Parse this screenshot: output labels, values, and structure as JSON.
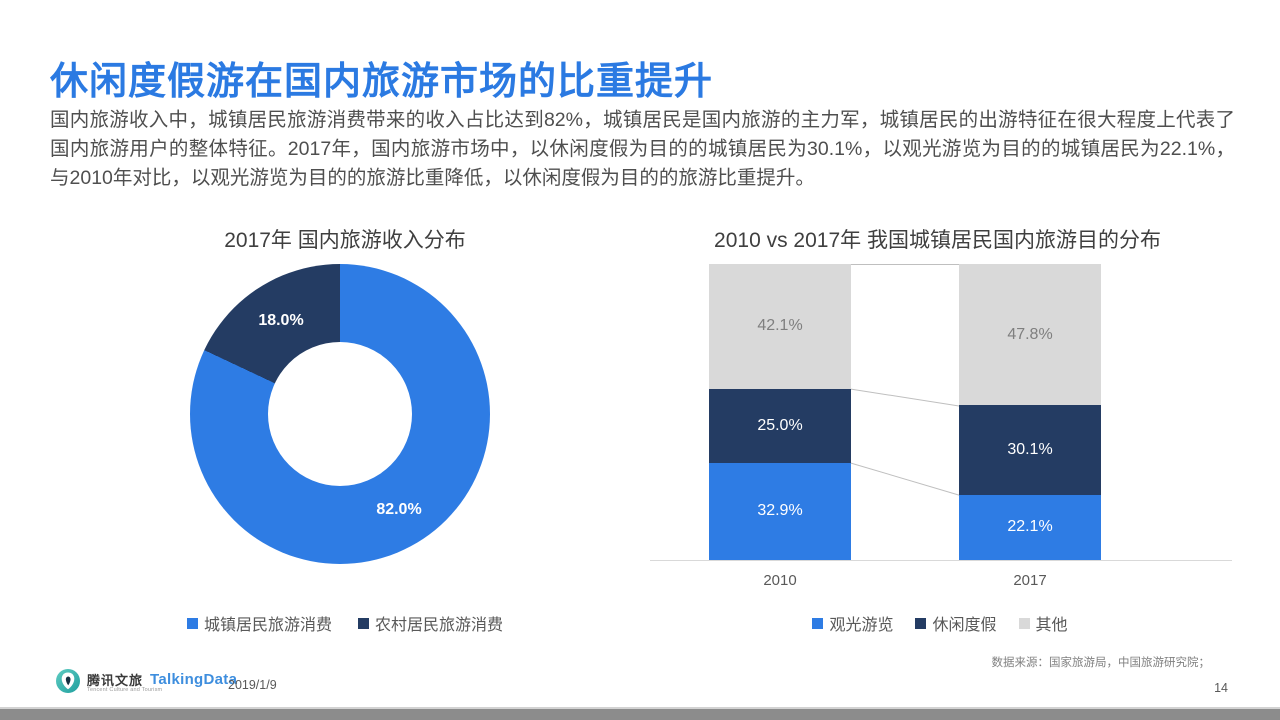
{
  "slide": {
    "title": "休闲度假游在国内旅游市场的比重提升",
    "body": "国内旅游收入中，城镇居民旅游消费带来的收入占比达到82%，城镇居民是国内旅游的主力军，城镇居民的出游特征在很大程度上代表了国内旅游用户的整体特征。2017年，国内旅游市场中，以休闲度假为目的的城镇居民为30.1%，以观光游览为目的的城镇居民为22.1%，与2010年对比，以观光游览为目的的旅游比重降低，以休闲度假为目的的旅游比重提升。",
    "page_number": "14"
  },
  "footer": {
    "tencent_logo": {
      "name": "腾讯文旅",
      "caption": "Tencent Culture and Tourism"
    },
    "talkingdata_logo": "TalkingData",
    "date": "2019/1/9",
    "source": "数据来源：国家旅游局，中国旅游研究院；"
  },
  "colors": {
    "title_blue": "#2b7ae2",
    "primary_blue": "#2e7ce4",
    "dark_navy": "#243c63",
    "light_gray": "#d9d9d9",
    "connector_gray": "#bfbfbf"
  },
  "chart_data": [
    {
      "type": "pie",
      "subtype": "donut",
      "title": "2017年 国内旅游收入分布",
      "labels": [
        "城镇居民旅游消费",
        "农村居民旅游消费"
      ],
      "values": [
        82.0,
        18.0
      ],
      "value_labels": [
        "82.0%",
        "18.0%"
      ],
      "colors": [
        "#2e7ce4",
        "#243c63"
      ],
      "legend_position": "bottom"
    },
    {
      "type": "bar",
      "subtype": "stacked-100-percent-column",
      "title": "2010 vs 2017年 我国城镇居民国内旅游目的分布",
      "categories": [
        "2010",
        "2017"
      ],
      "series": [
        {
          "name": "观光游览",
          "color": "#2e7ce4",
          "label_color": "#ffffff",
          "values": [
            32.9,
            22.1
          ]
        },
        {
          "name": "休闲度假",
          "color": "#243c63",
          "label_color": "#ffffff",
          "values": [
            25.0,
            30.1
          ]
        },
        {
          "name": "其他",
          "color": "#d9d9d9",
          "label_color": "#7f7f7f",
          "values": [
            42.1,
            47.8
          ]
        }
      ],
      "ylim": [
        0,
        100
      ],
      "legend_position": "bottom",
      "connector_lines": true
    }
  ]
}
